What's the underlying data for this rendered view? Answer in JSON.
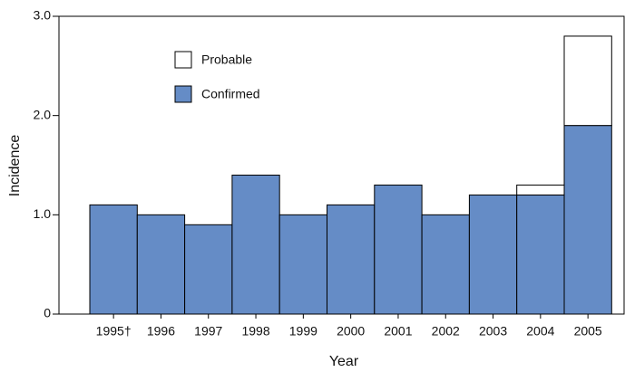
{
  "chart_data": {
    "type": "stacked_bar",
    "x_label": "Year",
    "y_label": "Incidence",
    "categories": [
      "1995†",
      "1996",
      "1997",
      "1998",
      "1999",
      "2000",
      "2001",
      "2002",
      "2003",
      "2004",
      "2005"
    ],
    "series": [
      {
        "name": "Confirmed",
        "color": "#658cc6",
        "values": [
          1.1,
          1.0,
          0.9,
          1.4,
          1.0,
          1.1,
          1.3,
          1.0,
          1.2,
          1.2,
          1.9
        ]
      },
      {
        "name": "Probable",
        "color": "#ffffff",
        "values": [
          0,
          0,
          0,
          0,
          0,
          0,
          0,
          0,
          0,
          0.1,
          0.9
        ]
      }
    ],
    "ylim": [
      0,
      3.0
    ],
    "yticks": [
      0,
      {
        "value": 1.0,
        "label": "1.0"
      },
      {
        "value": 2.0,
        "label": "2.0"
      },
      {
        "value": 3.0,
        "label": "3.0"
      }
    ],
    "legend": "upper left"
  }
}
